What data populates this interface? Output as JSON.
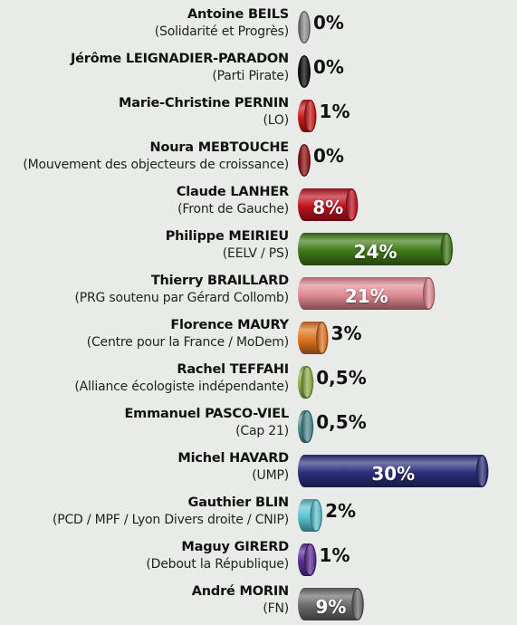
{
  "chart_data": {
    "type": "bar",
    "orientation": "horizontal",
    "title": "",
    "xlabel": "",
    "ylabel": "",
    "grid": false,
    "xlim": [
      0,
      30
    ],
    "categories": [
      {
        "name": "Antoine BEILS",
        "party": "(Solidarité et Progrès)"
      },
      {
        "name": "Jérôme LEIGNADIER-PARADON",
        "party": "(Parti Pirate)"
      },
      {
        "name": "Marie-Christine PERNIN",
        "party": "(LO)"
      },
      {
        "name": "Noura MEBTOUCHE",
        "party": "(Mouvement des objecteurs de croissance)"
      },
      {
        "name": "Claude LANHER",
        "party": "(Front de Gauche)"
      },
      {
        "name": "Philippe MEIRIEU",
        "party": "(EELV / PS)"
      },
      {
        "name": "Thierry BRAILLARD",
        "party": "(PRG soutenu par Gérard Collomb)"
      },
      {
        "name": "Florence MAURY",
        "party": "(Centre pour la France / MoDem)"
      },
      {
        "name": "Rachel TEFFAHI",
        "party": "(Alliance écologiste indépendante)"
      },
      {
        "name": "Emmanuel PASCO-VIEL",
        "party": "(Cap 21)"
      },
      {
        "name": "Michel HAVARD",
        "party": "(UMP)"
      },
      {
        "name": "Gauthier BLIN",
        "party": "(PCD / MPF / Lyon Divers droite / CNIP)"
      },
      {
        "name": "Maguy GIRERD",
        "party": "(Debout la République)"
      },
      {
        "name": "André MORIN",
        "party": "(FN)"
      }
    ],
    "values": [
      0,
      0,
      1,
      0,
      8,
      24,
      21,
      3,
      0.5,
      0.5,
      30,
      2,
      1,
      9
    ],
    "labels": [
      "0%",
      "0%",
      "1%",
      "0%",
      "8%",
      "24%",
      "21%",
      "3%",
      "0,5%",
      "0,5%",
      "30%",
      "2%",
      "1%",
      "9%"
    ],
    "colors": [
      "#8f8f8f",
      "#0a0a0a",
      "#c81c1c",
      "#8f1212",
      "#c0121e",
      "#3f7a17",
      "#e08a92",
      "#e0741f",
      "#8fb04a",
      "#4f8e95",
      "#2b2f7c",
      "#5cc3d3",
      "#5a2c94",
      "#6a6a6a"
    ]
  }
}
